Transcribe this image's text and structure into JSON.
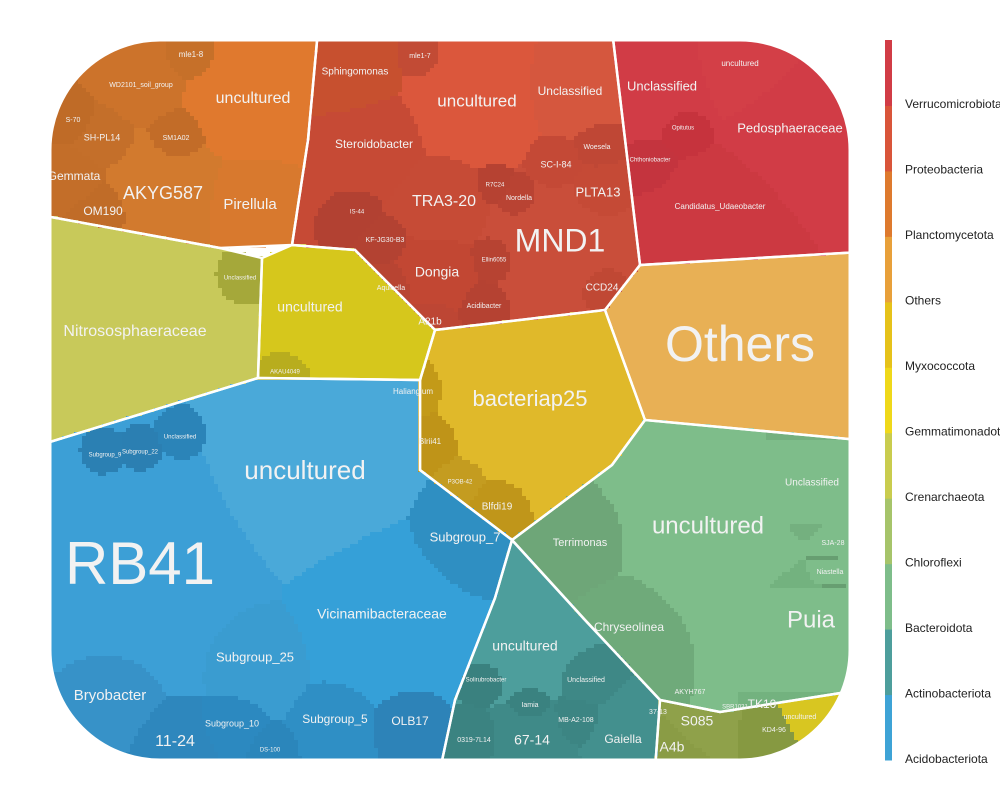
{
  "chart_data": {
    "type": "voronoi-treemap",
    "title": "",
    "phyla": [
      {
        "name": "Verrucomicrobiota",
        "color": "#d13c46",
        "genera": [
          "Unclassified",
          "uncultured",
          "Pedosphaeraceae",
          "Opitutus",
          "Candidatus_Udaeobacter",
          "Chthoniobacter",
          "Ellin517"
        ]
      },
      {
        "name": "Proteobacteria",
        "color": "#d9553a",
        "genera": [
          "MND1",
          "uncultured",
          "Unclassified",
          "Sphingomonas",
          "Steroidobacter",
          "TRA3-20",
          "Dongia",
          "PLTA13",
          "SC-I-84",
          "Nordella",
          "Aquicella",
          "Ellin6055",
          "A21b",
          "CCD24",
          "Acidibacter",
          "Woesela",
          "R7C24",
          "IS-44",
          "KF-JG30-B3",
          "mle1-7"
        ]
      },
      {
        "name": "Planctomycetota",
        "color": "#de7a2e",
        "genera": [
          "AKYG587",
          "uncultured",
          "Pirellula",
          "Gemmata",
          "OM190",
          "WD2101_soil_group",
          "SH-PL14",
          "SM1A02",
          "S-70",
          "mle1-8"
        ]
      },
      {
        "name": "Others",
        "color": "#e8b055",
        "genera": [
          "Others"
        ]
      },
      {
        "name": "Myxococcota",
        "color": "#e0b92a",
        "genera": [
          "bacteriap25",
          "Haliangium",
          "Blrii41",
          "Blfdi19",
          "P3OB-42"
        ]
      },
      {
        "name": "Gemmatimonadota",
        "color": "#efd81a",
        "genera": []
      },
      {
        "name": "Crenarchaeota",
        "color": "#c8c95a",
        "genera": [
          "Nitrososphaeraceae",
          "Unclassified"
        ]
      },
      {
        "name": "Chloroflexi",
        "color": "#d8c621",
        "genera": [
          "uncultured",
          "AKAU4049",
          "SBR1031",
          "KD4-96",
          "TK10"
        ]
      },
      {
        "name": "Bacteroidota",
        "color": "#7ebd8a",
        "genera": [
          "uncultured",
          "Unclassified",
          "Puia",
          "Chryseolinea",
          "Terrimonas",
          "SJA-28",
          "Niastella",
          "Flavisolibacter"
        ]
      },
      {
        "name": "Actinobacteriota",
        "color": "#4d9e9c",
        "genera": [
          "uncultured",
          "67-14",
          "Gaiella",
          "Unclassified",
          "MB-A2-108",
          "0319-7L14",
          "Solirubrobacter",
          "Iamia"
        ]
      },
      {
        "name": "Acidobacteriota",
        "color": "#3ea3d6",
        "genera": [
          "RB41",
          "uncultured",
          "Vicinamibacteraceae",
          "Subgroup_7",
          "Subgroup_25",
          "Bryobacter",
          "11-24",
          "Subgroup_10",
          "Subgroup_5",
          "OLB17",
          "Subgroup_22",
          "Subgroup_9",
          "DS-100",
          "Unclassified"
        ]
      }
    ],
    "cells": [
      {
        "label": "RB41",
        "phylum": "Acidobacteriota",
        "color": "#3c9fd6",
        "weight": 8
      },
      {
        "label": "uncultured",
        "phylum": "Acidobacteriota",
        "color": "#4aa9d9",
        "weight": 5
      },
      {
        "label": "Vicinamibacteraceae",
        "phylum": "Acidobacteriota",
        "color": "#35a0d8",
        "weight": 4
      },
      {
        "label": "Subgroup_7",
        "phylum": "Acidobacteriota",
        "color": "#2f8fc2",
        "weight": 1.5
      },
      {
        "label": "Subgroup_25",
        "phylum": "Acidobacteriota",
        "color": "#3a9cd0",
        "weight": 1.5
      },
      {
        "label": "Bryobacter",
        "phylum": "Acidobacteriota",
        "color": "#3792c8",
        "weight": 1.5
      },
      {
        "label": "11-24",
        "phylum": "Acidobacteriota",
        "color": "#2e87bd",
        "weight": 1
      },
      {
        "label": "Subgroup_10",
        "phylum": "Acidobacteriota",
        "color": "#2c89c0",
        "weight": 0.6
      },
      {
        "label": "Subgroup_5",
        "phylum": "Acidobacteriota",
        "color": "#2f8fc5",
        "weight": 0.8
      },
      {
        "label": "OLB17",
        "phylum": "Acidobacteriota",
        "color": "#2d83b8",
        "weight": 0.6
      },
      {
        "label": "Subgroup_22",
        "phylum": "Acidobacteriota",
        "color": "#2b7fb2",
        "weight": 0.3
      },
      {
        "label": "Subgroup_9",
        "phylum": "Acidobacteriota",
        "color": "#2b80b3",
        "weight": 0.3
      },
      {
        "label": "DS-100",
        "phylum": "Acidobacteriota",
        "color": "#2b86bb",
        "weight": 0.3
      },
      {
        "label": "Unclassified",
        "phylum": "Acidobacteriota",
        "color": "#2b84b8",
        "weight": 0.3
      },
      {
        "label": "Others",
        "phylum": "Others",
        "color": "#e8b055",
        "weight": 6
      },
      {
        "label": "bacteriap25",
        "phylum": "Myxococcota",
        "color": "#e0b92a",
        "weight": 4
      },
      {
        "label": "Haliangium",
        "phylum": "Myxococcota",
        "color": "#c39a18",
        "weight": 0.4
      },
      {
        "label": "Blrii41",
        "phylum": "Myxococcota",
        "color": "#bf9418",
        "weight": 0.4
      },
      {
        "label": "Blfdi19",
        "phylum": "Myxococcota",
        "color": "#c0961a",
        "weight": 0.4
      },
      {
        "label": "P3OB-42",
        "phylum": "Myxococcota",
        "color": "#c49c20",
        "weight": 0.3
      },
      {
        "label": "Nitrososphaeraceae",
        "phylum": "Crenarchaeota",
        "color": "#c8c95a",
        "weight": 5
      },
      {
        "label": "Unclassified",
        "phylum": "Crenarchaeota",
        "color": "#a5a83a",
        "weight": 0.3
      },
      {
        "label": "uncultured",
        "phylum": "Chloroflexi",
        "color": "#d6c71c",
        "weight": 2
      },
      {
        "label": "AKAU4049",
        "phylum": "Chloroflexi",
        "color": "#b8ad1e",
        "weight": 0.3
      },
      {
        "label": "MND1",
        "phylum": "Proteobacteria",
        "color": "#c94e3a",
        "weight": 4
      },
      {
        "label": "uncultured",
        "phylum": "Proteobacteria",
        "color": "#db573c",
        "weight": 3
      },
      {
        "label": "Unclassified",
        "phylum": "Proteobacteria",
        "color": "#d5573e",
        "weight": 1.5
      },
      {
        "label": "Sphingomonas",
        "phylum": "Proteobacteria",
        "color": "#c7502f",
        "weight": 1.2
      },
      {
        "label": "Steroidobacter",
        "phylum": "Proteobacteria",
        "color": "#c64a35",
        "weight": 1.5
      },
      {
        "label": "TRA3-20",
        "phylum": "Proteobacteria",
        "color": "#c64b36",
        "weight": 1.5
      },
      {
        "label": "Dongia",
        "phylum": "Proteobacteria",
        "color": "#c24733",
        "weight": 1.2
      },
      {
        "label": "PLTA13",
        "phylum": "Proteobacteria",
        "color": "#c54a36",
        "weight": 0.8
      },
      {
        "label": "SC-I-84",
        "phylum": "Proteobacteria",
        "color": "#c44936",
        "weight": 0.6
      },
      {
        "label": "Nordella",
        "phylum": "Proteobacteria",
        "color": "#b94333",
        "weight": 0.4
      },
      {
        "label": "Aquicella",
        "phylum": "Proteobacteria",
        "color": "#b84432",
        "weight": 0.4
      },
      {
        "label": "Ellin6055",
        "phylum": "Proteobacteria",
        "color": "#b74332",
        "weight": 0.4
      },
      {
        "label": "A21b",
        "phylum": "Proteobacteria",
        "color": "#bd4634",
        "weight": 0.5
      },
      {
        "label": "CCD24",
        "phylum": "Proteobacteria",
        "color": "#c04834",
        "weight": 0.5
      },
      {
        "label": "Acidibacter",
        "phylum": "Proteobacteria",
        "color": "#b54232",
        "weight": 0.4
      },
      {
        "label": "Woesela",
        "phylum": "Proteobacteria",
        "color": "#bf4735",
        "weight": 0.4
      },
      {
        "label": "R7C24",
        "phylum": "Proteobacteria",
        "color": "#b64232",
        "weight": 0.3
      },
      {
        "label": "IS-44",
        "phylum": "Proteobacteria",
        "color": "#b24132",
        "weight": 0.3
      },
      {
        "label": "KF-JG30-B3",
        "phylum": "Proteobacteria",
        "color": "#b34232",
        "weight": 0.3
      },
      {
        "label": "mle1-7",
        "phylum": "Proteobacteria",
        "color": "#c24b35",
        "weight": 0.3
      },
      {
        "label": "Unclassified",
        "phylum": "Verrucomicrobiota",
        "color": "#d13c46",
        "weight": 2
      },
      {
        "label": "uncultured",
        "phylum": "Verrucomicrobiota",
        "color": "#d33f47",
        "weight": 1.5
      },
      {
        "label": "Pedosphaeraceae",
        "phylum": "Verrucomicrobiota",
        "color": "#d03c45",
        "weight": 2
      },
      {
        "label": "Opitutus",
        "phylum": "Verrucomicrobiota",
        "color": "#c6333d",
        "weight": 0.4
      },
      {
        "label": "Candidatus_Udaeobacter",
        "phylum": "Verrucomicrobiota",
        "color": "#cc3941",
        "weight": 1.5
      },
      {
        "label": "Chthoniobacter",
        "phylum": "Verrucomicrobiota",
        "color": "#c4343e",
        "weight": 0.3
      },
      {
        "label": "AKYG587",
        "phylum": "Planctomycetota",
        "color": "#d27a2e",
        "weight": 2
      },
      {
        "label": "uncultured",
        "phylum": "Planctomycetota",
        "color": "#e0792e",
        "weight": 2
      },
      {
        "label": "Pirellula",
        "phylum": "Planctomycetota",
        "color": "#d8792e",
        "weight": 1.2
      },
      {
        "label": "Gemmata",
        "phylum": "Planctomycetota",
        "color": "#c36e29",
        "weight": 0.5
      },
      {
        "label": "OM190",
        "phylum": "Planctomycetota",
        "color": "#c06c28",
        "weight": 0.5
      },
      {
        "label": "WD2101_soil_group",
        "phylum": "Planctomycetota",
        "color": "#cc732b",
        "weight": 0.8
      },
      {
        "label": "SH-PL14",
        "phylum": "Planctomycetota",
        "color": "#c46f2a",
        "weight": 0.5
      },
      {
        "label": "SM1A02",
        "phylum": "Planctomycetota",
        "color": "#c26c28",
        "weight": 0.4
      },
      {
        "label": "S-70",
        "phylum": "Planctomycetota",
        "color": "#bf6b27",
        "weight": 0.3
      },
      {
        "label": "mle1-8",
        "phylum": "Planctomycetota",
        "color": "#c67029",
        "weight": 0.3
      },
      {
        "label": "uncultured",
        "phylum": "Bacteroidota",
        "color": "#7ebd8a",
        "weight": 4
      },
      {
        "label": "Unclassified",
        "phylum": "Bacteroidota",
        "color": "#74b07f",
        "weight": 1.5
      },
      {
        "label": "Puia",
        "phylum": "Bacteroidota",
        "color": "#73b27f",
        "weight": 1.5
      },
      {
        "label": "Chryseolinea",
        "phylum": "Bacteroidota",
        "color": "#6faa7a",
        "weight": 1.2
      },
      {
        "label": "Terrimonas",
        "phylum": "Bacteroidota",
        "color": "#6ea678",
        "weight": 1
      },
      {
        "label": "SJA-28",
        "phylum": "Bacteroidota",
        "color": "#689f72",
        "weight": 0.3
      },
      {
        "label": "Niastella",
        "phylum": "Bacteroidota",
        "color": "#679e71",
        "weight": 0.3
      },
      {
        "label": "uncultured",
        "phylum": "Actinobacteriota",
        "color": "#4d9e9c",
        "weight": 2
      },
      {
        "label": "67-14",
        "phylum": "Actinobacteriota",
        "color": "#3f8a88",
        "weight": 1.2
      },
      {
        "label": "Gaiella",
        "phylum": "Actinobacteriota",
        "color": "#43908e",
        "weight": 1
      },
      {
        "label": "Unclassified",
        "phylum": "Actinobacteriota",
        "color": "#3e8886",
        "weight": 0.5
      },
      {
        "label": "MB-A2-108",
        "phylum": "Actinobacteriota",
        "color": "#3c8583",
        "weight": 0.4
      },
      {
        "label": "0319-7L14",
        "phylum": "Actinobacteriota",
        "color": "#3b8381",
        "weight": 0.4
      },
      {
        "label": "Iamia",
        "phylum": "Actinobacteriota",
        "color": "#3a8280",
        "weight": 0.3
      },
      {
        "label": "Solirubrobacter",
        "phylum": "Actinobacteriota",
        "color": "#3a817f",
        "weight": 0.3
      },
      {
        "label": "S085",
        "phylum": "Chloroflexi",
        "color": "#8fa14a",
        "weight": 0.6
      },
      {
        "label": "A4b",
        "phylum": "Chloroflexi",
        "color": "#8a9c45",
        "weight": 0.6
      },
      {
        "label": "TK10",
        "phylum": "Chloroflexi",
        "color": "#93a54e",
        "weight": 0.4
      },
      {
        "label": "KD4-96",
        "phylum": "Chloroflexi",
        "color": "#869941",
        "weight": 0.4
      },
      {
        "label": "SBR1031",
        "phylum": "Chloroflexi",
        "color": "#7f923c",
        "weight": 0.3
      },
      {
        "label": "AKYH767",
        "phylum": "Chloroflexi",
        "color": "#7e923c",
        "weight": 0.3
      },
      {
        "label": "uncultured",
        "phylum": "Chloroflexi",
        "color": "#8b9d46",
        "weight": 0.4
      },
      {
        "label": "37-13",
        "phylum": "Chloroflexi",
        "color": "#819540",
        "weight": 0.3
      }
    ],
    "legend": {
      "placement": "right",
      "items": [
        {
          "name": "Verrucomicrobiota",
          "color": "#d13c46"
        },
        {
          "name": "Proteobacteria",
          "color": "#d9553a"
        },
        {
          "name": "Planctomycetota",
          "color": "#de7a2e"
        },
        {
          "name": "Others",
          "color": "#e8a03a"
        },
        {
          "name": "Myxococcota",
          "color": "#e6c21a"
        },
        {
          "name": "Gemmatimonadota",
          "color": "#efd81a"
        },
        {
          "name": "Crenarchaeota",
          "color": "#c9cc4e"
        },
        {
          "name": "Chloroflexi",
          "color": "#a6c46a"
        },
        {
          "name": "Bacteroidota",
          "color": "#7ebd8a"
        },
        {
          "name": "Actinobacteriota",
          "color": "#4d9e9c"
        },
        {
          "name": "Acidobacteriota",
          "color": "#3ea3d6"
        }
      ]
    }
  }
}
